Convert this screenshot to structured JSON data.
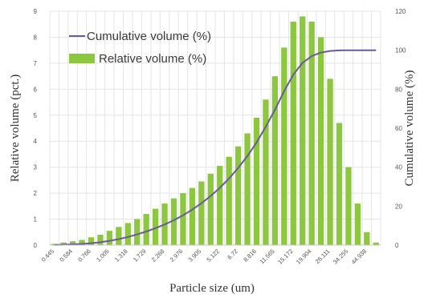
{
  "chart_data": {
    "type": "bar",
    "xlabel": "Particle size (um)",
    "ylabel": "Relative volume (pct.)",
    "y2label": "Cumulative volume (%)",
    "ylim": [
      0,
      9
    ],
    "y2lim": [
      0,
      120
    ],
    "yticks": [
      "0",
      "1",
      "2",
      "3",
      "4",
      "5",
      "6",
      "7",
      "8",
      "9"
    ],
    "y2ticks": [
      "0",
      "20",
      "40",
      "60",
      "80",
      "100",
      "120"
    ],
    "grid": true,
    "legend_position": "top-left",
    "categories": [
      "0.445",
      "",
      "0.584",
      "",
      "0.766",
      "",
      "1.005",
      "",
      "1.318",
      "",
      "1.729",
      "",
      "2.268",
      "",
      "2.976",
      "",
      "3.905",
      "",
      "5.122",
      "",
      "6.72",
      "",
      "8.816",
      "",
      "11.565",
      "",
      "15.172",
      "",
      "19.904",
      "",
      "26.111",
      "",
      "34.255",
      "",
      "44.938",
      ""
    ],
    "series": [
      {
        "name": "Relative volume (%)",
        "kind": "bar",
        "axis": "left",
        "color": "#8dc63f",
        "values": [
          0.05,
          0.1,
          0.15,
          0.2,
          0.3,
          0.4,
          0.55,
          0.7,
          0.85,
          1.0,
          1.2,
          1.4,
          1.6,
          1.8,
          2.0,
          2.2,
          2.45,
          2.75,
          3.05,
          3.4,
          3.8,
          4.3,
          4.9,
          5.6,
          6.5,
          7.6,
          8.6,
          8.8,
          8.6,
          8.0,
          6.4,
          4.7,
          3.0,
          1.6,
          0.5,
          0.1
        ]
      },
      {
        "name": "Cumulative volume (%)",
        "kind": "line",
        "axis": "right",
        "color": "#6a5a9c",
        "values": [
          0.1,
          0.2,
          0.4,
          0.6,
          1.0,
          1.5,
          2.2,
          3.1,
          4.2,
          5.5,
          7.0,
          8.7,
          10.6,
          12.8,
          15.3,
          18.2,
          21.5,
          25.2,
          29.4,
          34.2,
          39.6,
          45.7,
          52.7,
          60.7,
          69.5,
          79.0,
          87.5,
          93.5,
          97.0,
          98.8,
          99.6,
          99.9,
          100,
          100,
          100,
          100
        ]
      }
    ]
  }
}
